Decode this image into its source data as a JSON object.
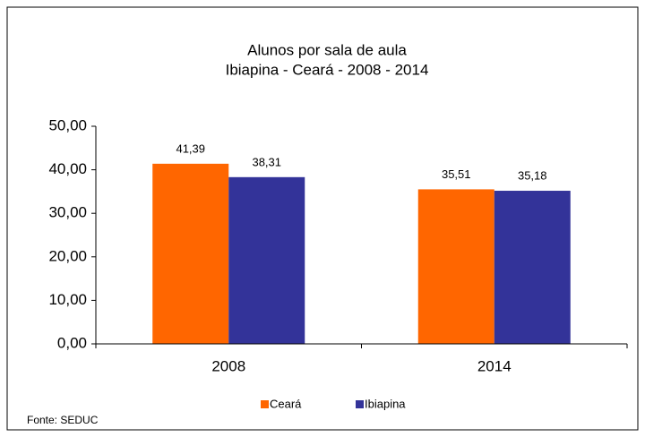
{
  "chart_data": {
    "type": "bar",
    "title": "Alunos por sala de aula",
    "subtitle": "Ibiapina - Ceará - 2008 - 2014",
    "categories": [
      "2008",
      "2014"
    ],
    "series": [
      {
        "name": "Ceará",
        "color": "#ff6600",
        "values": [
          41.39,
          35.51
        ],
        "value_labels": [
          "41,39",
          "35,51"
        ]
      },
      {
        "name": "Ibiapina",
        "color": "#333399",
        "values": [
          38.31,
          35.18
        ],
        "value_labels": [
          "38,31",
          "35,18"
        ]
      }
    ],
    "ylim": [
      0,
      50
    ],
    "yticks": [
      {
        "value": 0,
        "label": "0,00"
      },
      {
        "value": 10,
        "label": "10,00"
      },
      {
        "value": 20,
        "label": "20,00"
      },
      {
        "value": 30,
        "label": "30,00"
      },
      {
        "value": 40,
        "label": "40,00"
      },
      {
        "value": 50,
        "label": "50,00"
      }
    ],
    "legend": "bottom",
    "source": "Fonte: SEDUC"
  }
}
